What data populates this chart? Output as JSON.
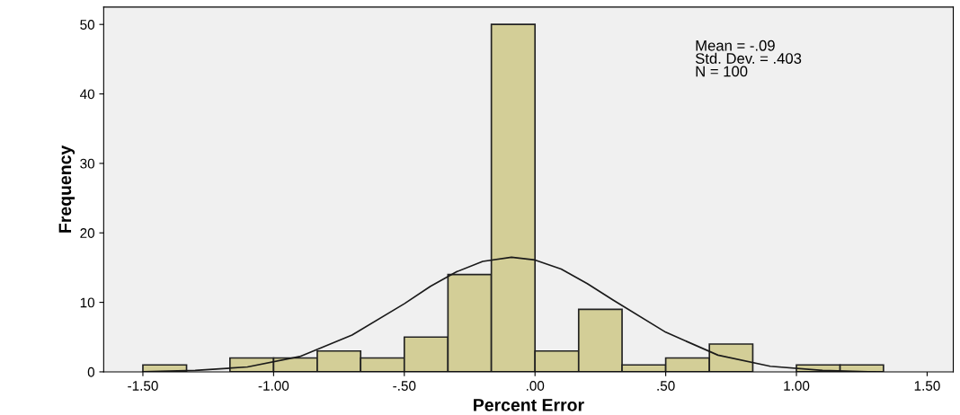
{
  "chart_data": {
    "type": "histogram",
    "xlabel": "Percent Error",
    "ylabel": "Frequency",
    "bins": [
      -1.5,
      -1.333,
      -1.167,
      -1.0,
      -0.833,
      -0.667,
      -0.5,
      -0.333,
      -0.167,
      0.0,
      0.167,
      0.333,
      0.5,
      0.667,
      0.833,
      1.0,
      1.167,
      1.333
    ],
    "values": [
      1,
      0,
      2,
      2,
      3,
      2,
      5,
      14,
      50,
      3,
      9,
      1,
      2,
      4,
      0,
      1,
      1
    ],
    "color": "#d3ce97",
    "series": [
      {
        "type": "line",
        "color": "#1a1a1a",
        "x": [
          -1.5,
          -1.3,
          -1.1,
          -0.9,
          -0.7,
          -0.5,
          -0.4,
          -0.3,
          -0.2,
          -0.09,
          0.0,
          0.1,
          0.2,
          0.3,
          0.5,
          0.7,
          0.9,
          1.1,
          1.3
        ],
        "values": [
          0.0,
          0.2,
          0.7,
          2.2,
          5.3,
          9.8,
          12.3,
          14.4,
          15.9,
          16.5,
          16.1,
          14.8,
          12.7,
          10.3,
          5.7,
          2.4,
          0.8,
          0.2,
          0.0
        ]
      }
    ],
    "xlim": [
      -1.65,
      1.6
    ],
    "xticks": [
      {
        "value": -1.5,
        "label": "-1.50"
      },
      {
        "value": -1.0,
        "label": "-1.00"
      },
      {
        "value": -0.5,
        "label": "-.50"
      },
      {
        "value": 0.0,
        "label": ".00"
      },
      {
        "value": 0.5,
        "label": ".50"
      },
      {
        "value": 1.0,
        "label": "1.00"
      },
      {
        "value": 1.5,
        "label": "1.50"
      }
    ],
    "ylim": [
      0,
      52.5
    ],
    "yticks": [
      0,
      10,
      20,
      30,
      40,
      50
    ],
    "annotations": [
      "Mean = -.09\nStd. Dev. = .403\nN = 100"
    ],
    "grid": false,
    "legend": false
  }
}
